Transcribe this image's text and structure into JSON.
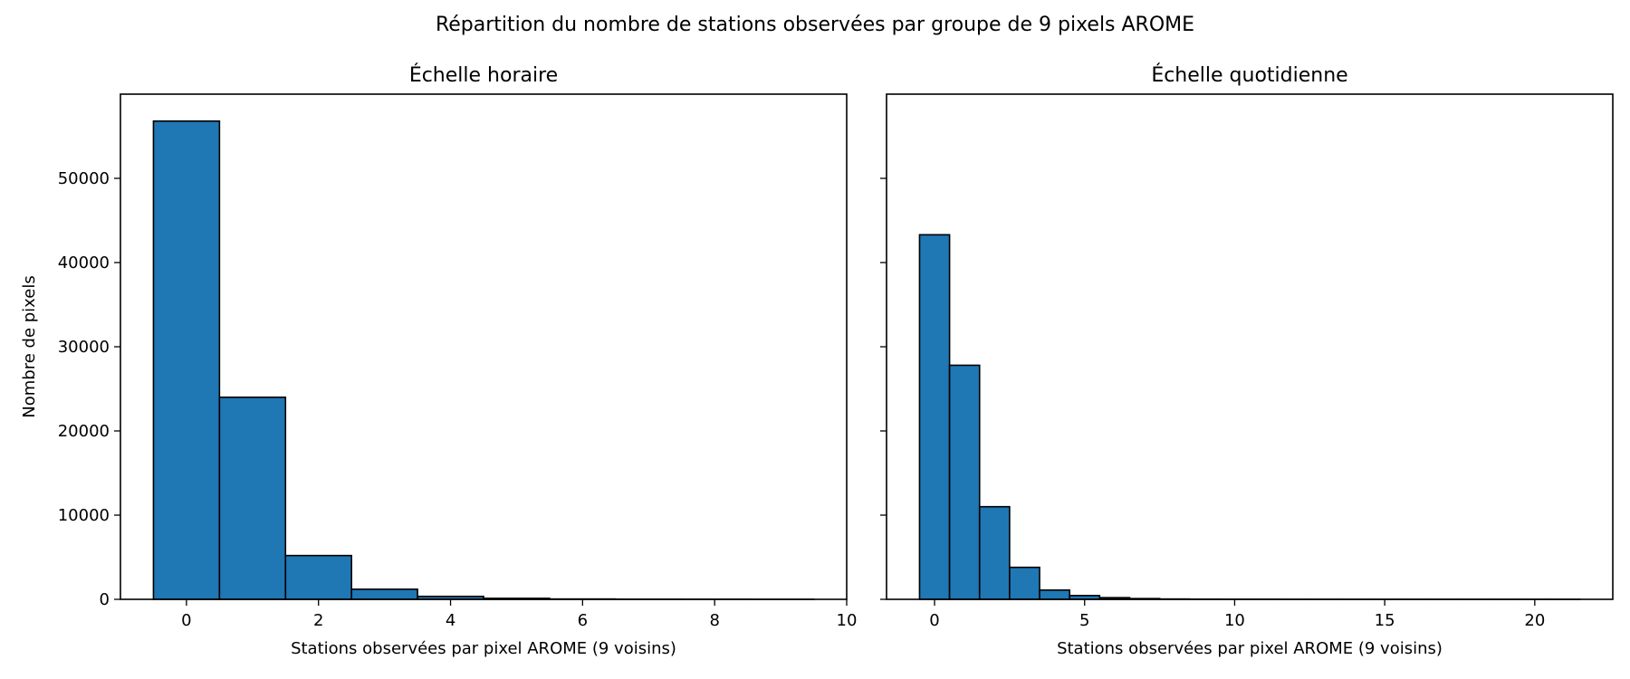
{
  "figure": {
    "suptitle": "Répartition du nombre de stations observées par groupe de 9 pixels AROME"
  },
  "chart_data": [
    {
      "type": "bar",
      "title": "Échelle horaire",
      "xlabel": "Stations observées par pixel AROME (9 voisins)",
      "ylabel": "Nombre de pixels",
      "xlim": [
        -1,
        10
      ],
      "ylim": [
        0,
        60000
      ],
      "xticks": [
        0,
        2,
        4,
        6,
        8,
        10
      ],
      "yticks": [
        0,
        10000,
        20000,
        30000,
        40000,
        50000
      ],
      "bins": [
        {
          "x0": -0.5,
          "x1": 0.5,
          "value": 56800
        },
        {
          "x0": 0.5,
          "x1": 1.5,
          "value": 24000
        },
        {
          "x0": 1.5,
          "x1": 2.5,
          "value": 5200
        },
        {
          "x0": 2.5,
          "x1": 3.5,
          "value": 1200
        },
        {
          "x0": 3.5,
          "x1": 4.5,
          "value": 350
        },
        {
          "x0": 4.5,
          "x1": 5.5,
          "value": 120
        },
        {
          "x0": 5.5,
          "x1": 6.5,
          "value": 40
        },
        {
          "x0": 6.5,
          "x1": 7.5,
          "value": 15
        },
        {
          "x0": 7.5,
          "x1": 8.5,
          "value": 5
        },
        {
          "x0": 8.5,
          "x1": 9.5,
          "value": 2
        }
      ],
      "bar_color": "#1f77b4",
      "edge_color": "#000000"
    },
    {
      "type": "bar",
      "title": "Échelle quotidienne",
      "xlabel": "Stations observées par pixel AROME (9 voisins)",
      "ylabel": "",
      "xlim": [
        -1.6,
        22.6
      ],
      "ylim": [
        0,
        60000
      ],
      "xticks": [
        0,
        5,
        10,
        15,
        20
      ],
      "yticks": [
        0,
        10000,
        20000,
        30000,
        40000,
        50000
      ],
      "bins": [
        {
          "x0": -0.5,
          "x1": 0.5,
          "value": 43300
        },
        {
          "x0": 0.5,
          "x1": 1.5,
          "value": 27800
        },
        {
          "x0": 1.5,
          "x1": 2.5,
          "value": 11000
        },
        {
          "x0": 2.5,
          "x1": 3.5,
          "value": 3800
        },
        {
          "x0": 3.5,
          "x1": 4.5,
          "value": 1100
        },
        {
          "x0": 4.5,
          "x1": 5.5,
          "value": 450
        },
        {
          "x0": 5.5,
          "x1": 6.5,
          "value": 200
        },
        {
          "x0": 6.5,
          "x1": 7.5,
          "value": 90
        },
        {
          "x0": 7.5,
          "x1": 8.5,
          "value": 40
        },
        {
          "x0": 8.5,
          "x1": 9.5,
          "value": 20
        },
        {
          "x0": 9.5,
          "x1": 10.5,
          "value": 10
        },
        {
          "x0": 10.5,
          "x1": 11.5,
          "value": 5
        },
        {
          "x0": 11.5,
          "x1": 12.5,
          "value": 3
        },
        {
          "x0": 12.5,
          "x1": 13.5,
          "value": 2
        },
        {
          "x0": 13.5,
          "x1": 14.5,
          "value": 1
        },
        {
          "x0": 14.5,
          "x1": 15.5,
          "value": 1
        },
        {
          "x0": 15.5,
          "x1": 16.5,
          "value": 1
        },
        {
          "x0": 16.5,
          "x1": 17.5,
          "value": 1
        },
        {
          "x0": 17.5,
          "x1": 18.5,
          "value": 1
        },
        {
          "x0": 18.5,
          "x1": 19.5,
          "value": 1
        },
        {
          "x0": 19.5,
          "x1": 20.5,
          "value": 1
        },
        {
          "x0": 20.5,
          "x1": 21.5,
          "value": 1
        }
      ],
      "bar_color": "#1f77b4",
      "edge_color": "#000000"
    }
  ]
}
